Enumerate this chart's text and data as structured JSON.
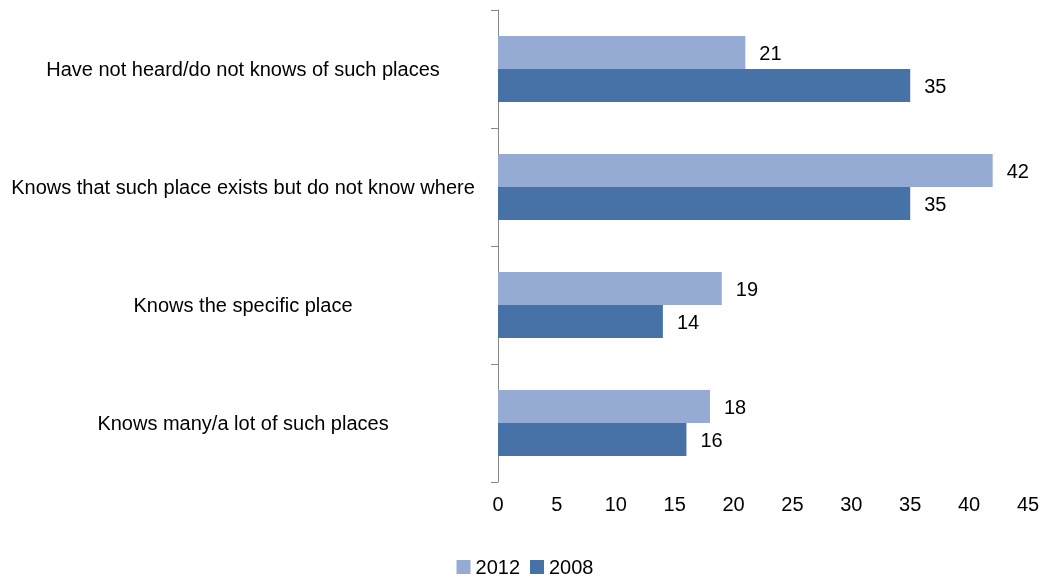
{
  "chart_data": {
    "type": "bar",
    "orientation": "horizontal",
    "categories": [
      "Have not heard/do not knows of such places",
      "Knows that such place exists but do not know where",
      "Knows the specific place",
      "Knows many/a lot of such places"
    ],
    "series": [
      {
        "name": "2012",
        "color": "#95abd3",
        "values": [
          21,
          42,
          19,
          18
        ]
      },
      {
        "name": "2008",
        "color": "#4672a8",
        "values": [
          35,
          35,
          14,
          16
        ]
      }
    ],
    "xlim": [
      0,
      45
    ],
    "xticks": [
      0,
      5,
      10,
      15,
      20,
      25,
      30,
      35,
      40,
      45
    ],
    "grid": false,
    "legend": "bottom",
    "data_labels": true
  }
}
